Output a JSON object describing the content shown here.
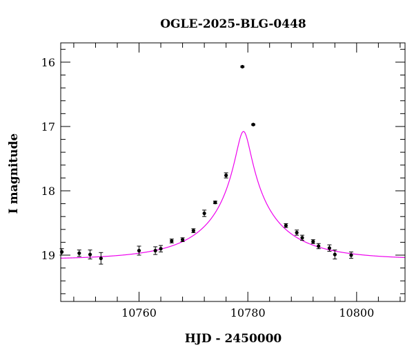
{
  "chart_data": {
    "type": "scatter",
    "title": "OGLE-2025-BLG-0448",
    "xlabel": "HJD - 2450000",
    "ylabel": "I magnitude",
    "xlim": [
      10745.6,
      10808.9
    ],
    "ylim": [
      19.72,
      15.7
    ],
    "y_inverted": true,
    "x_ticks": [
      10760,
      10780,
      10800
    ],
    "y_ticks": [
      16,
      17,
      18,
      19
    ],
    "grid": false,
    "colors": {
      "data": "#000000",
      "model": "#ee00ee",
      "frame": "#000000"
    },
    "model": {
      "type": "point-lens microlensing curve",
      "t0": 10779.2,
      "u0": 0.087,
      "tE": 14.9,
      "baseline_mag": 19.07,
      "f_s": 0.5
    },
    "points": [
      {
        "x": 10745.8,
        "y": 18.95,
        "err": 0.05
      },
      {
        "x": 10749.0,
        "y": 18.97,
        "err": 0.05
      },
      {
        "x": 10751.0,
        "y": 18.99,
        "err": 0.07
      },
      {
        "x": 10753.0,
        "y": 19.05,
        "err": 0.09
      },
      {
        "x": 10760.0,
        "y": 18.93,
        "err": 0.07
      },
      {
        "x": 10763.0,
        "y": 18.93,
        "err": 0.06
      },
      {
        "x": 10764.0,
        "y": 18.9,
        "err": 0.05
      },
      {
        "x": 10766.0,
        "y": 18.78,
        "err": 0.03
      },
      {
        "x": 10768.0,
        "y": 18.76,
        "err": 0.03
      },
      {
        "x": 10770.0,
        "y": 18.62,
        "err": 0.03
      },
      {
        "x": 10772.0,
        "y": 18.35,
        "err": 0.05
      },
      {
        "x": 10774.0,
        "y": 18.18,
        "err": 0.02
      },
      {
        "x": 10776.0,
        "y": 17.76,
        "err": 0.04
      },
      {
        "x": 10779.0,
        "y": 16.07,
        "err": 0.01
      },
      {
        "x": 10781.0,
        "y": 16.97,
        "err": 0.01
      },
      {
        "x": 10787.0,
        "y": 18.54,
        "err": 0.03
      },
      {
        "x": 10789.0,
        "y": 18.65,
        "err": 0.04
      },
      {
        "x": 10790.0,
        "y": 18.73,
        "err": 0.04
      },
      {
        "x": 10792.0,
        "y": 18.79,
        "err": 0.03
      },
      {
        "x": 10793.0,
        "y": 18.86,
        "err": 0.04
      },
      {
        "x": 10795.0,
        "y": 18.89,
        "err": 0.05
      },
      {
        "x": 10796.0,
        "y": 18.99,
        "err": 0.07
      },
      {
        "x": 10799.0,
        "y": 19.0,
        "err": 0.05
      }
    ]
  }
}
